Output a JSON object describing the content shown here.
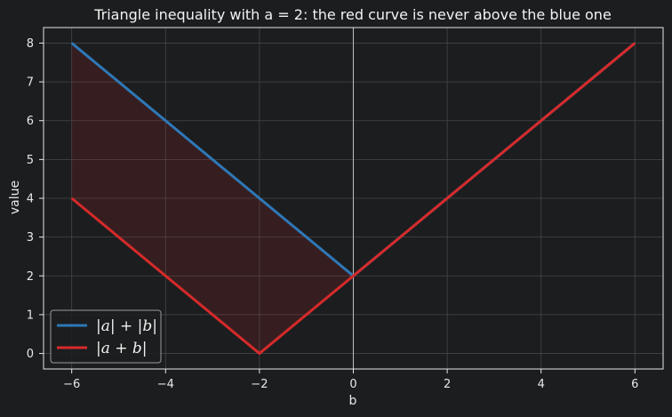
{
  "chart_data": {
    "type": "line",
    "title": "Triangle inequality with a = 2: the red curve is never above the blue one",
    "xlabel": "b",
    "ylabel": "value",
    "xlim": [
      -6.6,
      6.6
    ],
    "ylim": [
      -0.4,
      8.4
    ],
    "xticks": [
      -6,
      -4,
      -2,
      0,
      2,
      4,
      6
    ],
    "xtick_labels": [
      "−6",
      "−4",
      "−2",
      "0",
      "2",
      "4",
      "6"
    ],
    "yticks": [
      0,
      1,
      2,
      3,
      4,
      5,
      6,
      7,
      8
    ],
    "ytick_labels": [
      "0",
      "1",
      "2",
      "3",
      "4",
      "5",
      "6",
      "7",
      "8"
    ],
    "grid": true,
    "legend_position": "bottom-left",
    "vertical_reference_line_x": 0,
    "series": [
      {
        "name": "|a| + |b|",
        "color": "#2e78b7",
        "x": [
          -6,
          0,
          6
        ],
        "y": [
          8,
          2,
          8
        ]
      },
      {
        "name": "|a + b|",
        "color": "#d62a2a",
        "x": [
          -6,
          -2,
          0,
          6
        ],
        "y": [
          4,
          0,
          2,
          8
        ]
      }
    ],
    "shaded_region": {
      "between": [
        "|a| + |b|",
        "|a + b|"
      ],
      "x_range": [
        -6,
        0
      ],
      "color": "#d62a2a"
    }
  },
  "colors": {
    "background": "#1c1d1f",
    "plot_background": "#1c1d1f",
    "axes": "#e8e8e8",
    "grid": "#444648"
  }
}
